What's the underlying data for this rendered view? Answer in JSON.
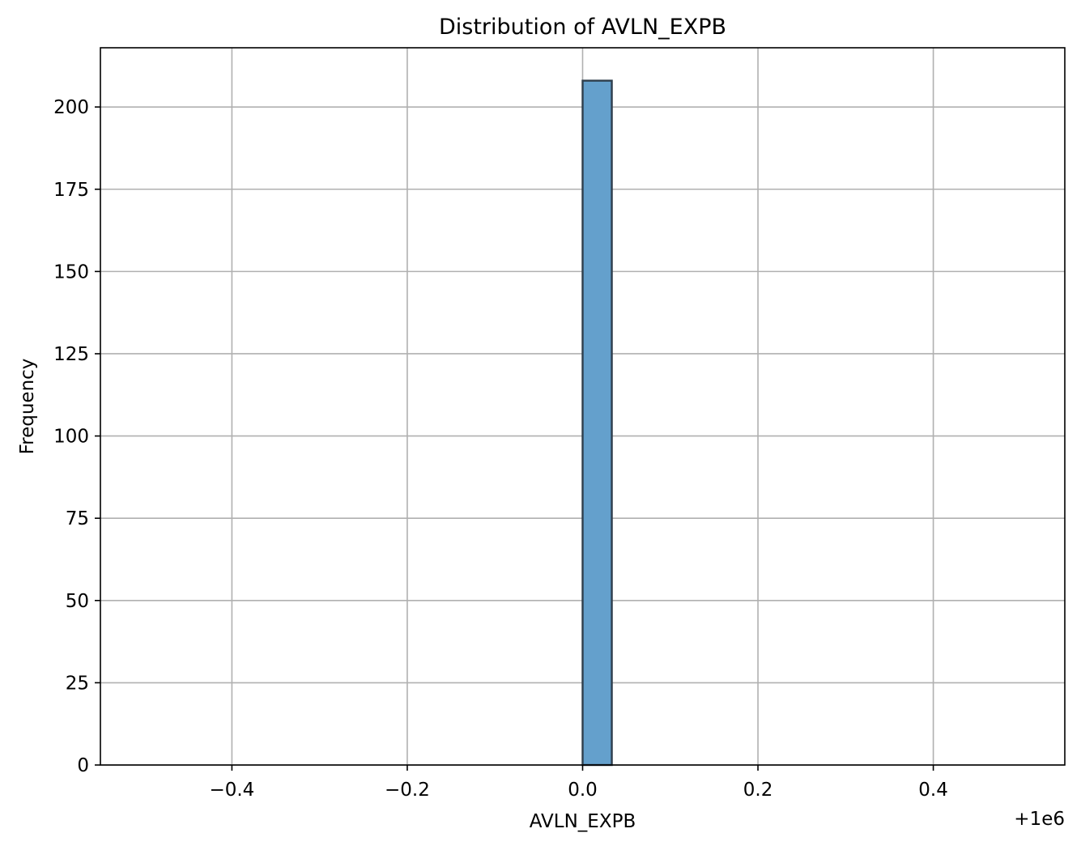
{
  "chart_data": {
    "type": "bar",
    "title": "Distribution of AVLN_EXPB",
    "xlabel": "AVLN_EXPB",
    "ylabel": "Frequency",
    "x_offset_label": "+1e6",
    "xlim": [
      -0.55,
      0.55
    ],
    "ylim": [
      0,
      218
    ],
    "xticks": [
      -0.4,
      -0.2,
      0.0,
      0.2,
      0.4
    ],
    "xtick_labels": [
      "−0.4",
      "−0.2",
      "0.0",
      "0.2",
      "0.4"
    ],
    "yticks": [
      0,
      25,
      50,
      75,
      100,
      125,
      150,
      175,
      200
    ],
    "ytick_labels": [
      "0",
      "25",
      "50",
      "75",
      "100",
      "125",
      "150",
      "175",
      "200"
    ],
    "grid": true,
    "bars": [
      {
        "x_start": 0.0,
        "x_end": 0.0333,
        "count": 208
      }
    ],
    "bar_color": "#64a0cc",
    "bar_edge_color": "#2e3e4c"
  }
}
